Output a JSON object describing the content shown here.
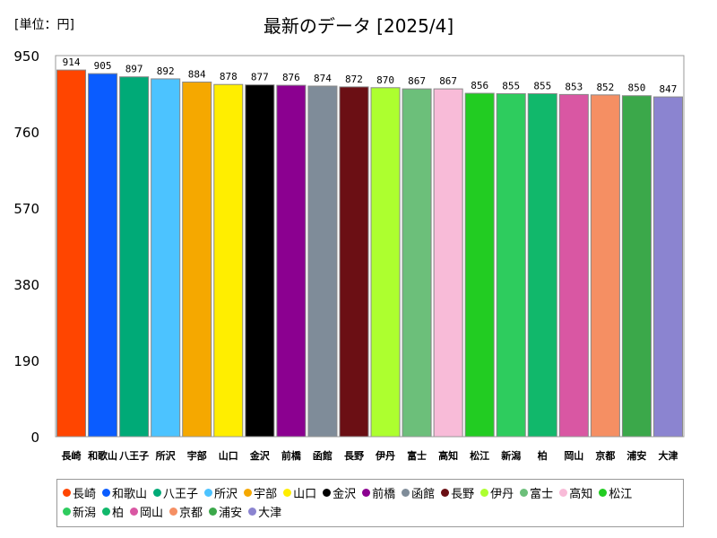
{
  "unit_label": "[単位：円]",
  "chart_data": {
    "type": "bar",
    "title": "最新のデータ [2025/4]",
    "categories": [
      "長崎",
      "和歌山",
      "八王子",
      "所沢",
      "宇部",
      "山口",
      "金沢",
      "前橋",
      "函館",
      "長野",
      "伊丹",
      "富士",
      "高知",
      "松江",
      "新潟",
      "柏",
      "岡山",
      "京都",
      "浦安",
      "大津"
    ],
    "values": [
      914,
      905,
      897,
      892,
      884,
      878,
      877,
      876,
      874,
      872,
      870,
      867,
      867,
      856,
      855,
      855,
      853,
      852,
      850,
      847
    ],
    "colors": [
      "#ff4500",
      "#0a5cff",
      "#00aa77",
      "#4cc3ff",
      "#f5a800",
      "#ffee00",
      "#000000",
      "#8b0090",
      "#7f8c99",
      "#6b0f14",
      "#adff2f",
      "#6cbf7a",
      "#f8bbd8",
      "#22cc22",
      "#2ecc5e",
      "#11b86b",
      "#d957a3",
      "#f58f63",
      "#3ba84a",
      "#8b84d0"
    ],
    "ylim": [
      0,
      950
    ],
    "yticks": [
      0,
      190,
      380,
      570,
      760,
      950
    ],
    "grid": false,
    "legend_position": "bottom"
  }
}
